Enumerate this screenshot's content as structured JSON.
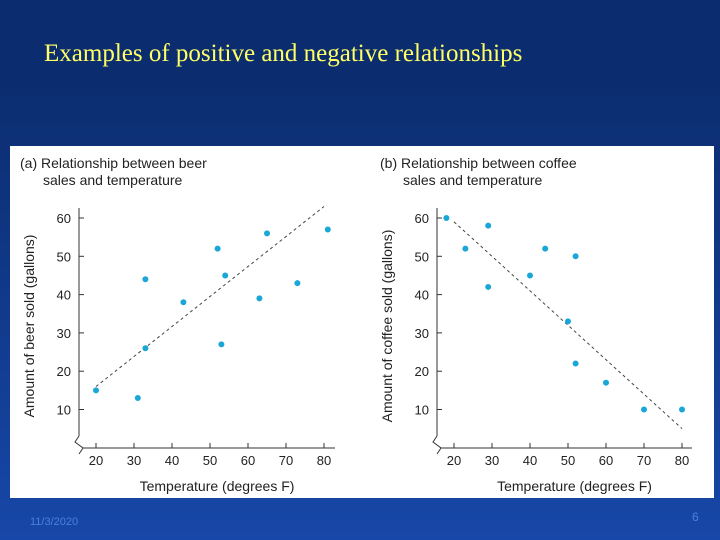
{
  "slide": {
    "title": "Examples of positive and negative relationships",
    "date": "11/3/2020",
    "page_number": "6"
  },
  "colors": {
    "background": "#0b2c6e",
    "title": "#ffff66",
    "point": "#1aa7d8",
    "axis": "#333333"
  },
  "chart_data": [
    {
      "type": "scatter",
      "title": [
        "(a) Relationship between beer",
        "sales and temperature"
      ],
      "xlabel": "Temperature (degrees F)",
      "ylabel": "Amount of beer sold (gallons)",
      "xlim": [
        15,
        85
      ],
      "ylim": [
        5,
        65
      ],
      "xticks": [
        20,
        30,
        40,
        50,
        60,
        70,
        80
      ],
      "yticks": [
        10,
        20,
        30,
        40,
        50,
        60
      ],
      "axis_break": true,
      "trendline": [
        [
          20,
          16
        ],
        [
          80,
          63
        ]
      ],
      "points": [
        {
          "x": 20,
          "y": 15
        },
        {
          "x": 31,
          "y": 13
        },
        {
          "x": 33,
          "y": 44
        },
        {
          "x": 33,
          "y": 26
        },
        {
          "x": 43,
          "y": 38
        },
        {
          "x": 52,
          "y": 52
        },
        {
          "x": 53,
          "y": 27
        },
        {
          "x": 54,
          "y": 45
        },
        {
          "x": 63,
          "y": 39
        },
        {
          "x": 65,
          "y": 56
        },
        {
          "x": 73,
          "y": 43
        },
        {
          "x": 81,
          "y": 57
        }
      ]
    },
    {
      "type": "scatter",
      "title": [
        "(b) Relationship between coffee",
        "sales and temperature"
      ],
      "xlabel": "Temperature (degrees F)",
      "ylabel": "Amount of coffee sold (gallons)",
      "xlim": [
        15,
        85
      ],
      "ylim": [
        5,
        65
      ],
      "xticks": [
        20,
        30,
        40,
        50,
        60,
        70,
        80
      ],
      "yticks": [
        10,
        20,
        30,
        40,
        50,
        60
      ],
      "axis_break": true,
      "trendline": [
        [
          20,
          59
        ],
        [
          80,
          5
        ]
      ],
      "points": [
        {
          "x": 18,
          "y": 60
        },
        {
          "x": 23,
          "y": 52
        },
        {
          "x": 29,
          "y": 58
        },
        {
          "x": 29,
          "y": 42
        },
        {
          "x": 40,
          "y": 45
        },
        {
          "x": 44,
          "y": 52
        },
        {
          "x": 50,
          "y": 33
        },
        {
          "x": 52,
          "y": 50
        },
        {
          "x": 52,
          "y": 22
        },
        {
          "x": 60,
          "y": 17
        },
        {
          "x": 70,
          "y": 10
        },
        {
          "x": 80,
          "y": 10
        }
      ]
    }
  ]
}
